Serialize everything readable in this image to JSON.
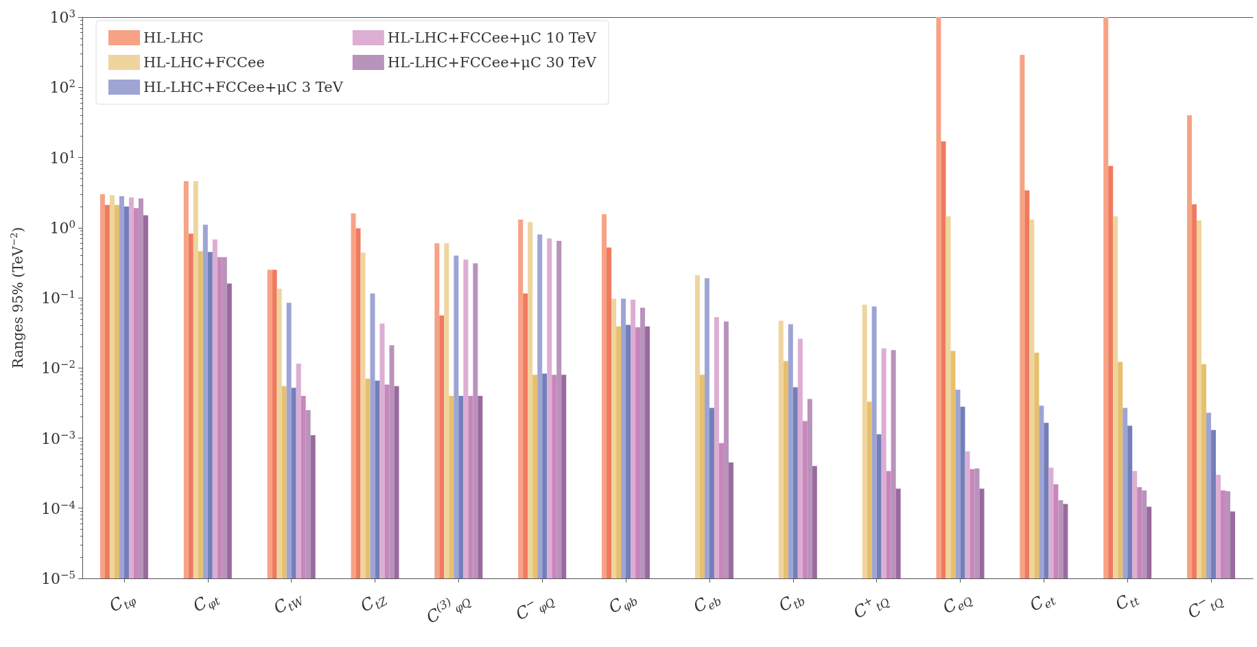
{
  "chart_data": {
    "type": "bar",
    "ylabel": "Ranges 95% (TeV$^{−2}$)",
    "categories": [
      "C$_{tφ}$",
      "C$_{φt}$",
      "C$_{tW}$",
      "C$_{tZ}$",
      "C$^{(3)}$$_{φQ}$",
      "C$^{−}$$_{φQ}$",
      "C$_{φb}$",
      "C$_{eb}$",
      "C$_{tb}$",
      "C$^{+}$$_{tQ}$",
      "C$_{eQ}$",
      "C$_{et}$",
      "C$_{tt}$",
      "C$^{−}$$_{tQ}$"
    ],
    "log": "y",
    "legend": "top left",
    "grid": false,
    "ylim": [
      1e-05,
      1000
    ],
    "yticks": [
      {
        "value": 1e-05,
        "label": "10$^{−5}$"
      },
      {
        "value": 0.0001,
        "label": "10$^{−4}$"
      },
      {
        "value": 0.001,
        "label": "10$^{−3}$"
      },
      {
        "value": 0.01,
        "label": "10$^{−2}$"
      },
      {
        "value": 0.1,
        "label": "10$^{−1}$"
      },
      {
        "value": 1,
        "label": "10$^{0}$"
      },
      {
        "value": 10,
        "label": "10$^{1}$"
      },
      {
        "value": 100,
        "label": "10$^{2}$"
      },
      {
        "value": 1000,
        "label": "10$^{3}$"
      }
    ],
    "series": [
      {
        "name": "HL-LHC",
        "color": "#f7a285",
        "values": [
          3.0,
          4.6,
          0.25,
          1.6,
          0.6,
          1.3,
          1.55,
          null,
          null,
          null,
          1000,
          290,
          1000,
          40
        ]
      },
      {
        "color": "#f07a5e",
        "values": [
          2.1,
          0.82,
          0.25,
          0.98,
          0.056,
          0.115,
          0.52,
          null,
          null,
          null,
          17,
          3.4,
          7.6,
          2.15
        ]
      },
      {
        "name": "HL-LHC+FCCee",
        "color": "#efd49e",
        "values": [
          2.9,
          4.6,
          0.135,
          0.44,
          0.6,
          1.2,
          0.097,
          0.21,
          0.047,
          0.08,
          1.45,
          1.3,
          1.45,
          1.27
        ]
      },
      {
        "color": "#e6c06c",
        "values": [
          2.1,
          0.46,
          0.0055,
          0.007,
          0.004,
          0.008,
          0.039,
          0.008,
          0.0125,
          0.0033,
          0.0175,
          0.0165,
          0.0122,
          0.0113
        ]
      },
      {
        "name": "HL-LHC+FCCee+μC 3 TeV",
        "color": "#9ea4d4",
        "values": [
          2.8,
          1.1,
          0.085,
          0.115,
          0.4,
          0.8,
          0.097,
          0.19,
          0.042,
          0.075,
          0.0049,
          0.0029,
          0.0027,
          0.0023
        ]
      },
      {
        "color": "#737fba",
        "values": [
          2.0,
          0.45,
          0.0052,
          0.0066,
          0.004,
          0.0083,
          0.041,
          0.0027,
          0.0053,
          0.00113,
          0.0028,
          0.00165,
          0.0015,
          0.0013
        ]
      },
      {
        "name": "HL-LHC+FCCee+μC 10 TeV",
        "color": "#dcaed3",
        "values": [
          2.7,
          0.68,
          0.0115,
          0.043,
          0.35,
          0.7,
          0.094,
          0.053,
          0.026,
          0.019,
          0.00065,
          0.00038,
          0.00034,
          0.0003
        ]
      },
      {
        "color": "#c886bc",
        "values": [
          1.9,
          0.38,
          0.004,
          0.0058,
          0.004,
          0.008,
          0.038,
          0.00085,
          0.00175,
          0.00034,
          0.00036,
          0.00022,
          0.0002,
          0.00018
        ]
      },
      {
        "name": "HL-LHC+FCCee+μC 30 TeV",
        "color": "#b893bb",
        "values": [
          2.6,
          0.38,
          0.0025,
          0.021,
          0.31,
          0.65,
          0.072,
          0.046,
          0.0036,
          0.018,
          0.00037,
          0.00013,
          0.00018,
          0.000175
        ]
      },
      {
        "color": "#9a6a9f",
        "values": [
          1.5,
          0.16,
          0.0011,
          0.0055,
          0.004,
          0.008,
          0.039,
          0.00045,
          0.0004,
          0.00019,
          0.00019,
          0.000115,
          0.000105,
          9e-05
        ]
      }
    ]
  }
}
